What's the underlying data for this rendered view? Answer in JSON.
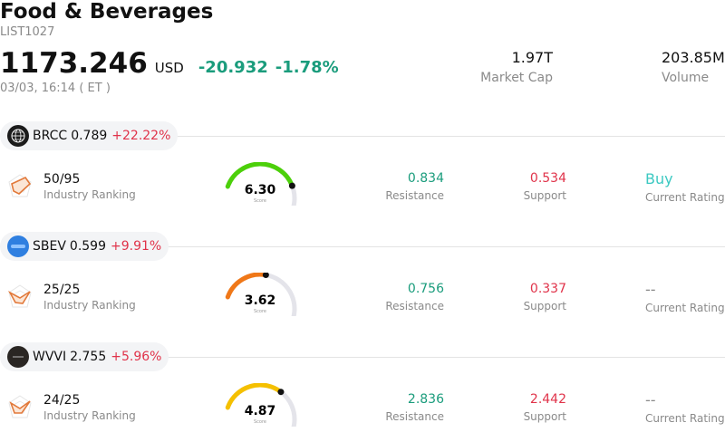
{
  "header": {
    "title": "Food & Beverages",
    "code": "LIST1027",
    "price": "1173.246",
    "currency": "USD",
    "change": "-20.932",
    "change_pct": "-1.78%",
    "time": "03/03, 16:14  ( ET )",
    "market_cap_value": "1.97T",
    "market_cap_label": "Market Cap",
    "volume_value": "203.85M",
    "volume_label": "Volume"
  },
  "colors": {
    "up": "#1a9c7c",
    "down": "#e0334a",
    "buy": "#3cc9c2",
    "neutral": "#8a8a8a"
  },
  "rows": [
    {
      "symbol": "BRCC",
      "price": "0.789",
      "pct": "+22.22%",
      "logo_icon": "globe-icon",
      "ranking": "50/95",
      "ranking_label": "Industry Ranking",
      "score": "6.30",
      "score_label": "Score",
      "score_fraction": 0.63,
      "gauge_color": "#4cd00a",
      "resistance": "0.834",
      "resistance_label": "Resistance",
      "support": "0.534",
      "support_label": "Support",
      "rating": "Buy",
      "rating_label": "Current Rating",
      "rating_color": "#3cc9c2"
    },
    {
      "symbol": "SBEV",
      "price": "0.599",
      "pct": "+9.91%",
      "logo_icon": "blue-circle-logo-icon",
      "ranking": "25/25",
      "ranking_label": "Industry Ranking",
      "score": "3.62",
      "score_label": "Score",
      "score_fraction": 0.362,
      "gauge_color": "#f07818",
      "resistance": "0.756",
      "resistance_label": "Resistance",
      "support": "0.337",
      "support_label": "Support",
      "rating": "--",
      "rating_label": "Current Rating",
      "rating_color": "#8a8a8a"
    },
    {
      "symbol": "WVVI",
      "price": "2.755",
      "pct": "+5.96%",
      "logo_icon": "dark-circle-logo-icon",
      "ranking": "24/25",
      "ranking_label": "Industry Ranking",
      "score": "4.87",
      "score_label": "Score",
      "score_fraction": 0.487,
      "gauge_color": "#f5c000",
      "resistance": "2.836",
      "resistance_label": "Resistance",
      "support": "2.442",
      "support_label": "Support",
      "rating": "--",
      "rating_label": "Current Rating",
      "rating_color": "#8a8a8a"
    }
  ]
}
